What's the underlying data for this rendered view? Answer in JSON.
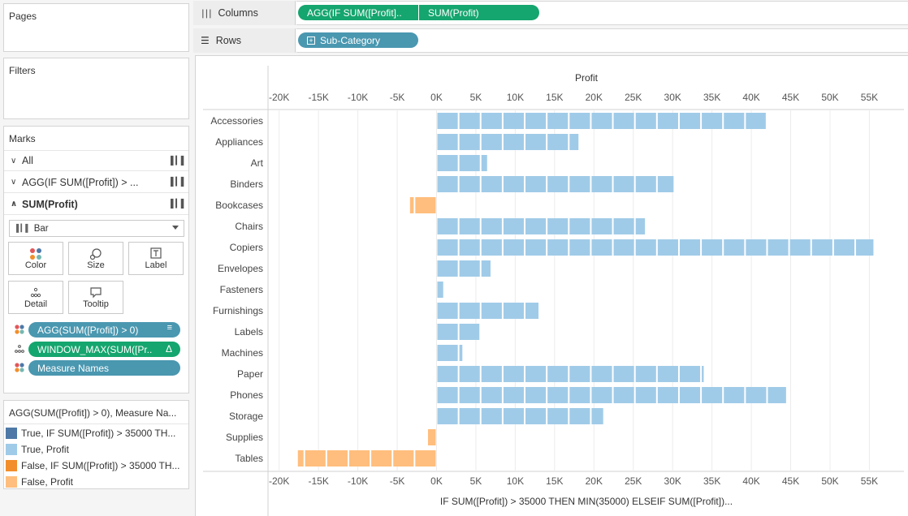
{
  "left_panel": {
    "pages_title": "Pages",
    "filters_title": "Filters",
    "marks_title": "Marks",
    "marks_rows": [
      {
        "label": "All",
        "chevron": "v"
      },
      {
        "label": "AGG(IF SUM([Profit]) > ...",
        "chevron": "v"
      },
      {
        "label": "SUM(Profit)",
        "chevron": "^"
      }
    ],
    "mark_type": "Bar",
    "mark_buttons": [
      {
        "label": "Color",
        "icon": "color-dots-icon"
      },
      {
        "label": "Size",
        "icon": "size-icon"
      },
      {
        "label": "Label",
        "icon": "label-icon"
      },
      {
        "label": "Detail",
        "icon": "detail-dots-icon"
      },
      {
        "label": "Tooltip",
        "icon": "tooltip-icon"
      }
    ],
    "mark_pills": [
      {
        "label": "AGG(SUM([Profit]) > 0)",
        "type": "blue",
        "suffix": "sort-icon"
      },
      {
        "label": "WINDOW_MAX(SUM([Pr..",
        "type": "green",
        "suffix": "Δ"
      },
      {
        "label": "Measure Names",
        "type": "blue",
        "suffix": ""
      }
    ],
    "legend_title": "AGG(SUM([Profit]) > 0), Measure Na...",
    "legend_items": [
      {
        "label": "True, IF SUM([Profit]) > 35000 TH...",
        "color": "#4e79a7"
      },
      {
        "label": "True, Profit",
        "color": "#a0cbe8"
      },
      {
        "label": "False, IF SUM([Profit]) > 35000 TH...",
        "color": "#f28e2b"
      },
      {
        "label": "False, Profit",
        "color": "#ffbe7d"
      }
    ]
  },
  "shelves": {
    "columns_label": "Columns",
    "rows_label": "Rows",
    "columns_pills": [
      "AGG(IF SUM([Profit]..",
      "SUM(Profit)"
    ],
    "rows_pills": [
      "Sub-Category"
    ]
  },
  "chart_data": {
    "type": "bar",
    "orientation": "horizontal",
    "title": "",
    "top_axis_title": "Profit",
    "bottom_axis_title": "IF SUM([Profit]) > 35000 THEN MIN(35000) ELSEIF SUM([Profit])...",
    "xlim": [
      -20000,
      55000
    ],
    "x_ticks": [
      "-20K",
      "-15K",
      "-10K",
      "-5K",
      "0K",
      "5K",
      "10K",
      "15K",
      "20K",
      "25K",
      "30K",
      "35K",
      "40K",
      "45K",
      "50K",
      "55K"
    ],
    "categories": [
      "Accessories",
      "Appliances",
      "Art",
      "Binders",
      "Bookcases",
      "Chairs",
      "Copiers",
      "Envelopes",
      "Fasteners",
      "Furnishings",
      "Labels",
      "Machines",
      "Paper",
      "Phones",
      "Storage",
      "Supplies",
      "Tables"
    ],
    "values": [
      41937,
      18138,
      6528,
      30222,
      -3473,
      26590,
      55618,
      6964,
      950,
      13059,
      5546,
      3385,
      34054,
      44516,
      21279,
      -1189,
      -17725
    ],
    "colors": {
      "positive": "#a0cbe8",
      "negative": "#ffbe7d"
    },
    "segment_step": 2800
  }
}
